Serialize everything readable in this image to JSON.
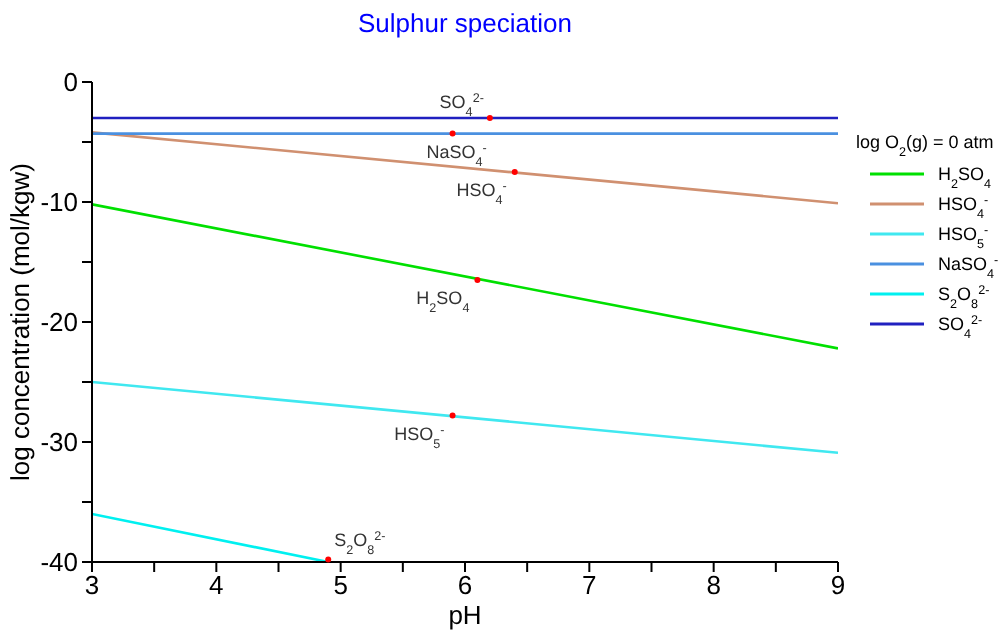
{
  "chart_data": {
    "type": "line",
    "title": "Sulphur speciation",
    "xlabel": "pH",
    "ylabel": "log concentration (mol/kgw)",
    "legend_title": "log O$_{2}$(g) = 0 atm",
    "legend": "right",
    "line_style": "solid",
    "xlim": [
      3,
      9
    ],
    "xticks": [
      3,
      {
        "value": 3.5,
        "label": null
      },
      4,
      {
        "value": 4.5,
        "label": null
      },
      5,
      {
        "value": 5.5,
        "label": null
      },
      6,
      {
        "value": 6.5,
        "label": null
      },
      7,
      {
        "value": 7.5,
        "label": null
      },
      8,
      {
        "value": 8.5,
        "label": null
      },
      9
    ],
    "ylim": [
      -40,
      0
    ],
    "yticks": [
      -40,
      {
        "value": -35,
        "label": null
      },
      -30,
      {
        "value": -25,
        "label": null
      },
      -20,
      {
        "value": -15,
        "label": null
      },
      -10,
      {
        "value": -5,
        "label": null
      },
      0
    ],
    "series": [
      {
        "name": "H$_{2}$SO$_{4}$",
        "color": "#00e000",
        "x": [
          3,
          9
        ],
        "values": [
          -10.2,
          -22.2
        ]
      },
      {
        "name": "HSO$_{4}$$^{-}$",
        "color": "#d09070",
        "x": [
          3,
          9
        ],
        "values": [
          -4.2,
          -10.1
        ]
      },
      {
        "name": "HSO$_{5}$$^{-}$",
        "color": "#40e8f0",
        "x": [
          3,
          9
        ],
        "values": [
          -25,
          -30.9
        ]
      },
      {
        "name": "NaSO$_{4}$$^{-}$",
        "color": "#4a90e0",
        "x": [
          3,
          9
        ],
        "values": [
          -4.3,
          -4.3
        ]
      },
      {
        "name": "S$_{2}$O$_{8}$$^{2-}$",
        "color": "#00f0f0",
        "x": [
          3,
          4.9
        ],
        "values": [
          -36,
          -40
        ]
      },
      {
        "name": "SO$_{4}$$^{2-}$",
        "color": "#2020c0",
        "x": [
          3,
          9
        ],
        "values": [
          -3,
          -3
        ]
      }
    ],
    "annotations": [
      {
        "text": "SO$_{4}$$^{2-}$",
        "x": 6.2,
        "y": -3
      },
      {
        "text": "NaSO$_{4}$$^{-}$",
        "x": 5.9,
        "y": -4.3
      },
      {
        "text": "HSO$_{4}$$^{-}$",
        "x": 6.4,
        "y": -7.5
      },
      {
        "text": "H$_{2}$SO$_{4}$",
        "x": 6.1,
        "y": -16.5
      },
      {
        "text": "HSO$_{5}$$^{-}$",
        "x": 5.9,
        "y": -27.8
      },
      {
        "text": "S$_{2}$O$_{8}$$^{2-}$",
        "x": 4.9,
        "y": -39.8
      }
    ]
  }
}
